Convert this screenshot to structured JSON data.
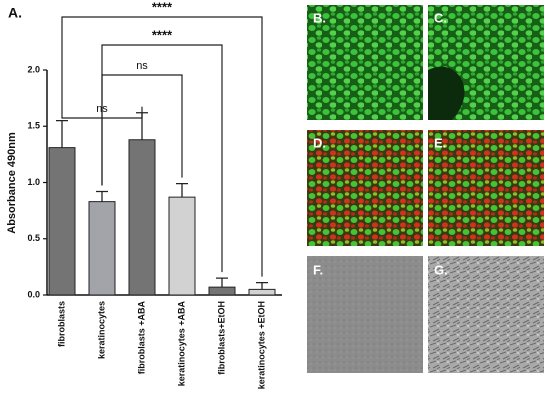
{
  "chart_data": {
    "type": "bar",
    "panel_label": "A.",
    "y_label": "Absorbance 490nm",
    "categories": [
      "fibroblasts",
      "keratinocytes",
      "fibroblasts +ABA",
      "keratinocytes +ABA",
      "fibroblasts+EtOH",
      "keratinocytes +EtOH"
    ],
    "values": [
      1.31,
      0.83,
      1.38,
      0.87,
      0.07,
      0.05
    ],
    "errors": [
      0.24,
      0.09,
      0.24,
      0.12,
      0.08,
      0.06
    ],
    "colors": [
      "#747474",
      "#a3a3aa",
      "#747474",
      "#d2d2d2",
      "#747474",
      "#d2d2d2"
    ],
    "ylim": [
      0,
      2.0
    ],
    "yticks": [
      {
        "value": 0,
        "label": "0.0"
      },
      {
        "value": 0.5,
        "label": "0.5"
      },
      {
        "value": 1.0,
        "label": "1.0"
      },
      {
        "value": 1.5,
        "label": "1.5"
      },
      {
        "value": 2.0,
        "label": "2.0"
      }
    ],
    "annotations": [
      {
        "text": "ns",
        "pair": [
          0,
          2
        ]
      },
      {
        "text": "ns",
        "pair": [
          1,
          3
        ]
      },
      {
        "text": "****",
        "pair": [
          1,
          4
        ]
      },
      {
        "text": "****",
        "pair": [
          0,
          5
        ]
      }
    ]
  },
  "panels": [
    {
      "label": "B."
    },
    {
      "label": "C."
    },
    {
      "label": "D."
    },
    {
      "label": "E."
    },
    {
      "label": "F."
    },
    {
      "label": "G."
    }
  ]
}
